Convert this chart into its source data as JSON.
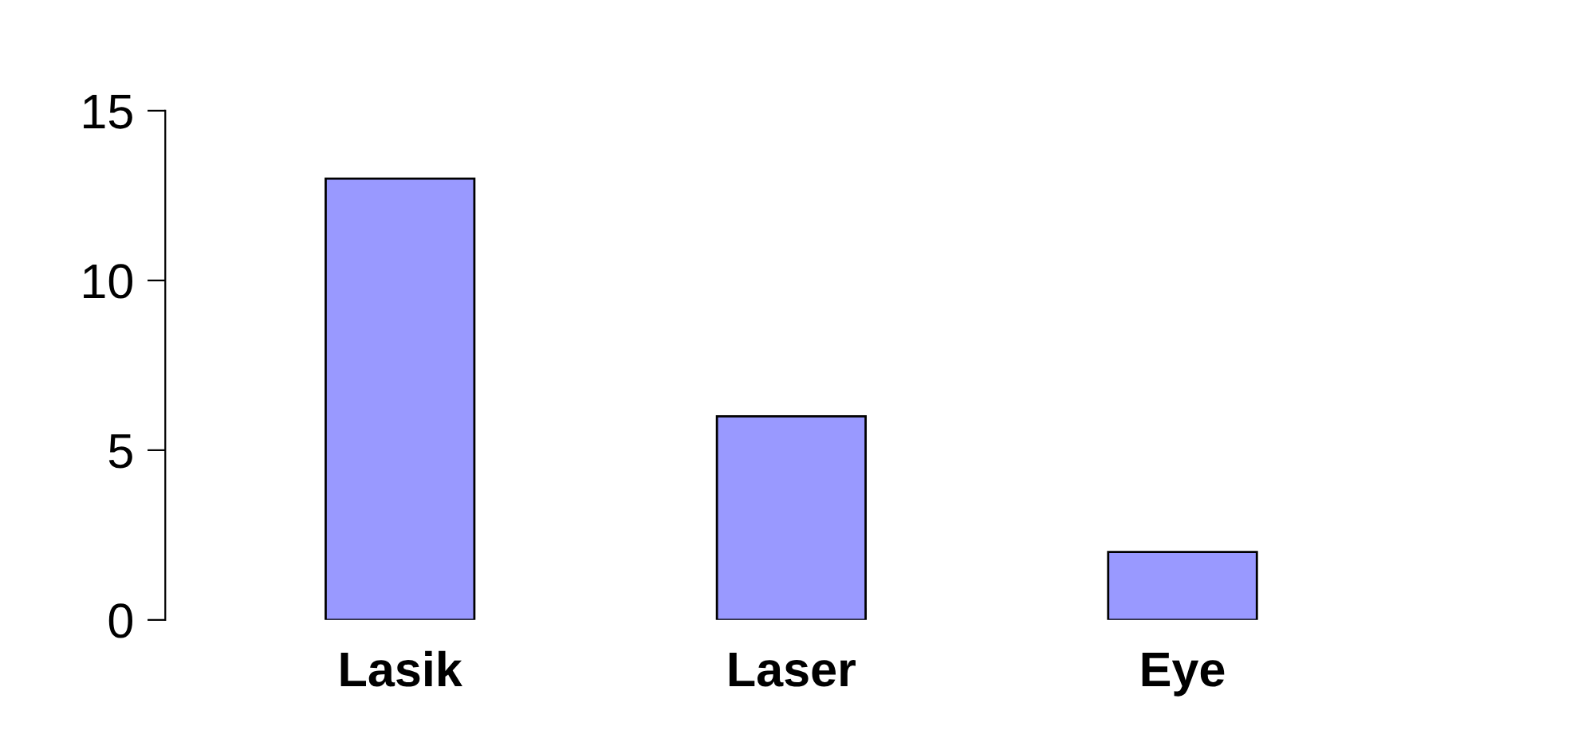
{
  "chart_data": {
    "type": "bar",
    "categories": [
      "Lasik",
      "Laser",
      "Eye"
    ],
    "values": [
      13,
      6,
      2
    ],
    "color": "#9999ff",
    "ylim": [
      0,
      15
    ],
    "yticks": [
      0,
      5,
      10,
      15
    ],
    "grid": false
  }
}
